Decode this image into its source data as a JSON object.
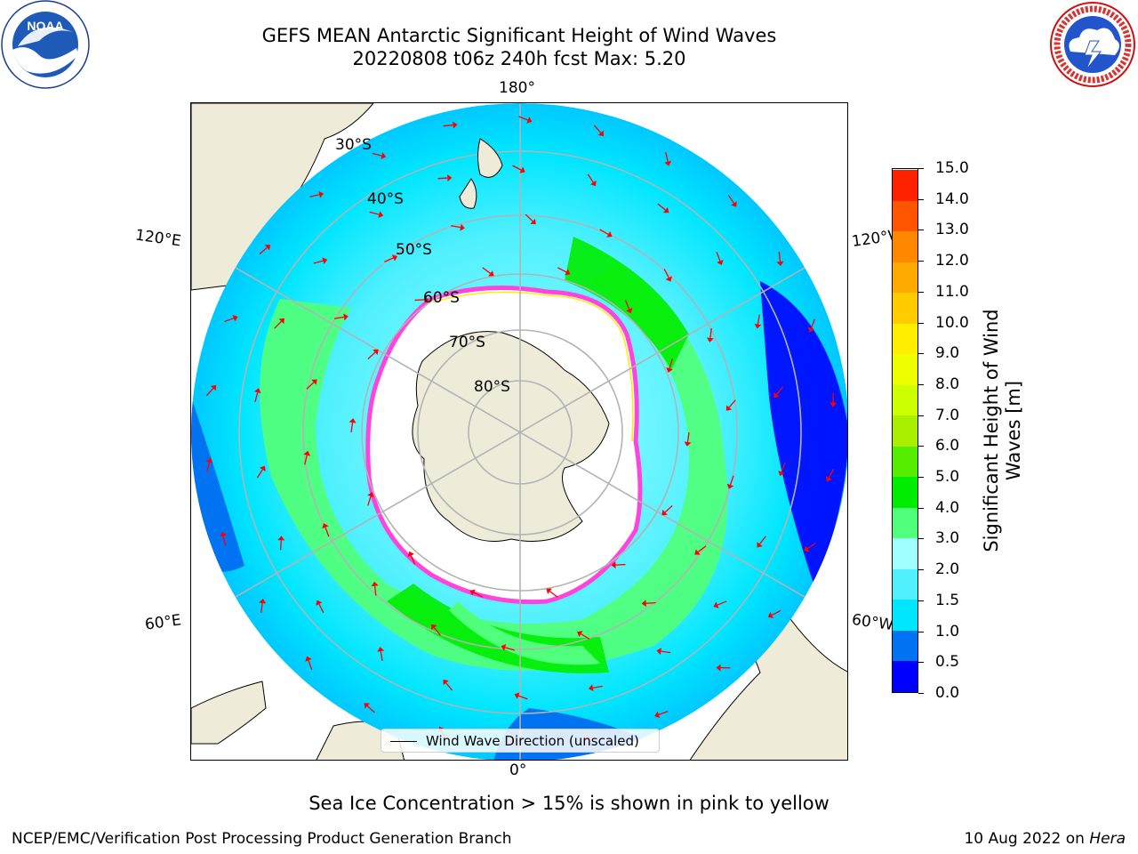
{
  "title": {
    "line1": "GEFS MEAN Antarctic Significant Height of Wind Waves",
    "line2": "20220808 t06z 240h fcst   Max: 5.20"
  },
  "logos": {
    "left": {
      "icon": "noaa-logo",
      "text": "NOAA"
    },
    "right": {
      "icon": "national-weather-service-logo",
      "text": "NATIONAL WEATHER SERVICE"
    }
  },
  "map": {
    "projection": "south-polar-stereographic",
    "longitude_labels": {
      "top": "180°",
      "bottom": "0°",
      "upper_left": "120°E",
      "upper_right": "120°W",
      "lower_left": "60°E",
      "lower_right": "60°W"
    },
    "latitude_labels": [
      "30°S",
      "40°S",
      "50°S",
      "60°S",
      "70°S",
      "80°S"
    ],
    "legend": {
      "label": "Wind Wave Direction (unscaled)"
    },
    "colors": {
      "land": "#eeecd8",
      "sea_ice_edge": "#ff44dd",
      "arrow": "#ff0000",
      "graticule": "#b3b3b3"
    }
  },
  "colorbar": {
    "label": "Significant Height of Wind Waves [m]",
    "ticks": [
      "0.0",
      "0.5",
      "1.0",
      "1.5",
      "2.0",
      "3.0",
      "4.0",
      "5.0",
      "6.0",
      "7.0",
      "8.0",
      "9.0",
      "10.0",
      "11.0",
      "12.0",
      "13.0",
      "14.0",
      "15.0"
    ],
    "colors": [
      "#0000ff",
      "#0073f2",
      "#00e6ff",
      "#50f0ff",
      "#a0ffff",
      "#50ff7c",
      "#00ed00",
      "#55ee00",
      "#aaee00",
      "#ccff00",
      "#eeff00",
      "#ffee00",
      "#ffcc00",
      "#ffaa00",
      "#ff8800",
      "#ff5500",
      "#ff2200"
    ]
  },
  "footnote": "Sea Ice Concentration > 15% is shown in pink to yellow",
  "branch": "NCEP/EMC/Verification Post Processing Product Generation Branch",
  "date": {
    "text": "10 Aug 2022 on ",
    "system": "Hera"
  }
}
